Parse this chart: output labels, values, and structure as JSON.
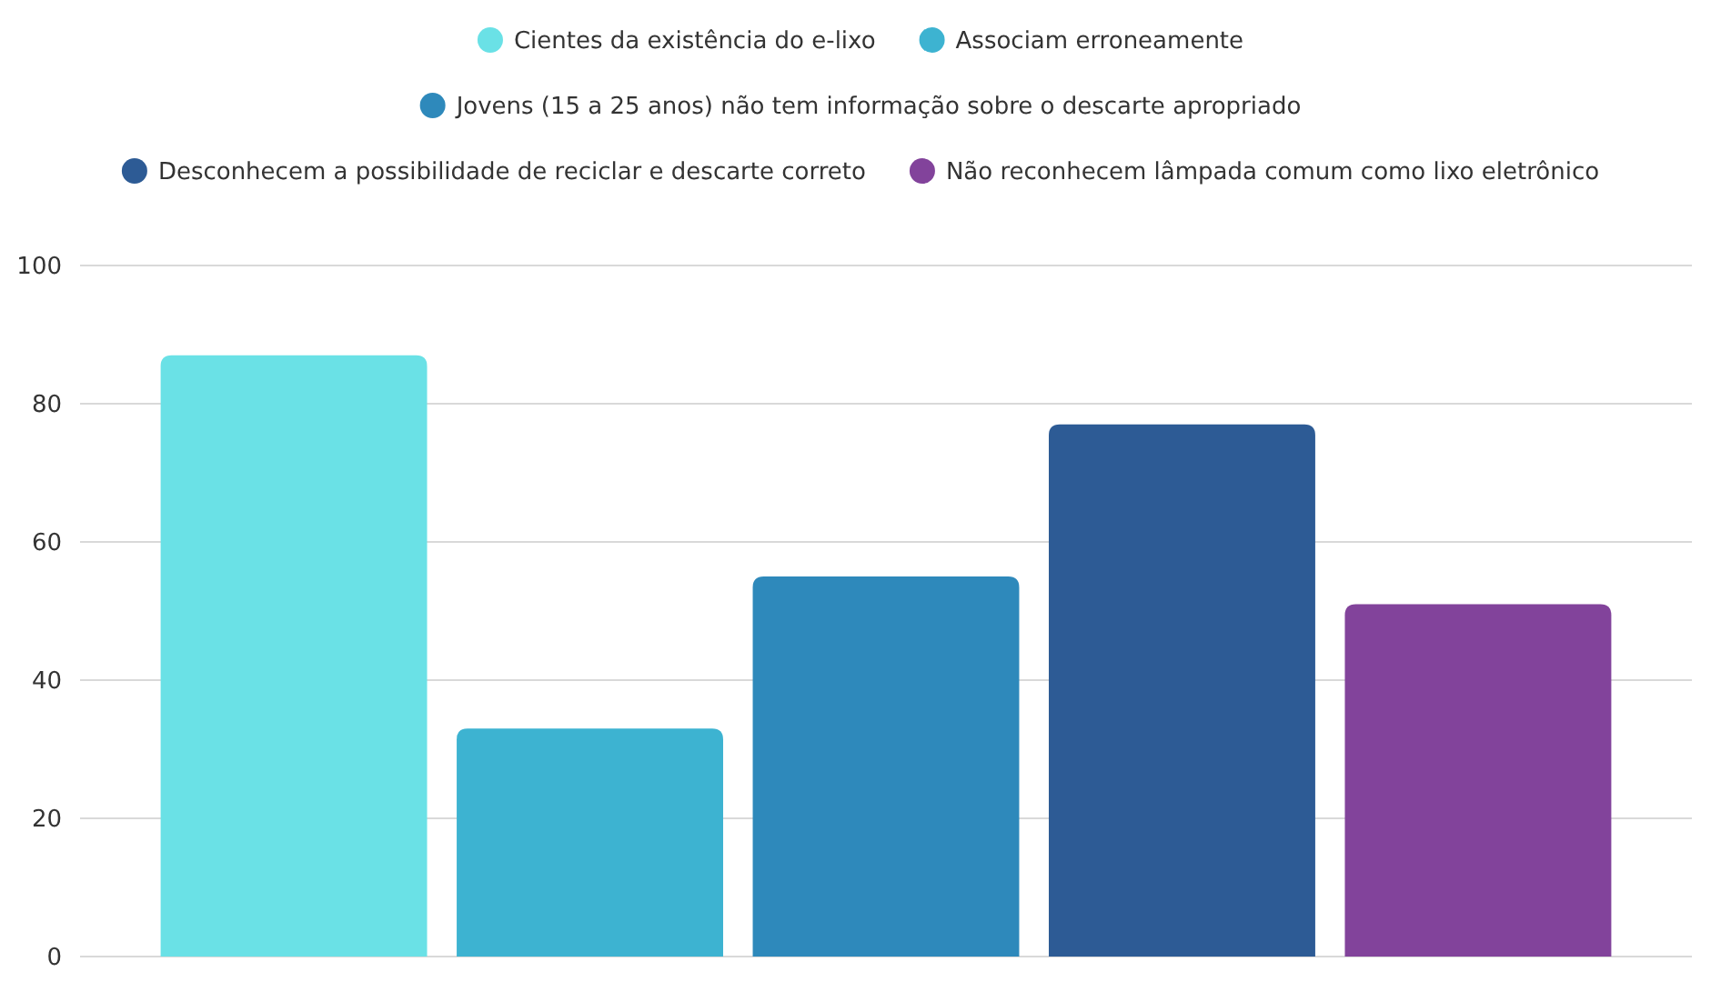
{
  "chart_data": {
    "type": "bar",
    "categories": [
      null
    ],
    "series": [
      {
        "name": "Cientes da existência do e-lixo",
        "color": "#6ae1e6",
        "values": [
          87
        ]
      },
      {
        "name": "Associam erroneamente",
        "color": "#3db3d1",
        "values": [
          33
        ]
      },
      {
        "name": "Jovens (15 a 25 anos) não tem informação sobre o descarte apropriado",
        "color": "#2e89bb",
        "values": [
          55
        ]
      },
      {
        "name": "Desconhecem a possibilidade de reciclar e descarte correto",
        "color": "#2d5b95",
        "values": [
          77
        ]
      },
      {
        "name": "Não reconhecem lâmpada comum como lixo eletrônico",
        "color": "#82439b",
        "values": [
          51
        ]
      }
    ],
    "ylim": [
      0,
      100
    ],
    "yticks": [
      0,
      20,
      40,
      60,
      80,
      100
    ],
    "grid": "y",
    "legend": "top"
  }
}
